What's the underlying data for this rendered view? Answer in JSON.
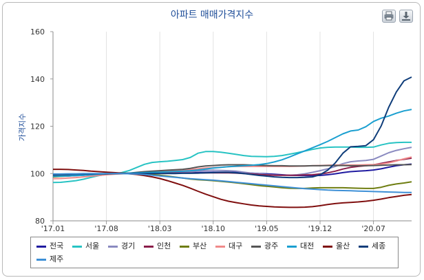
{
  "toolbar": {
    "print_icon": "printer-icon",
    "download_icon": "download-icon"
  },
  "chart_data": {
    "type": "line",
    "title": "아파트 매매가격지수",
    "ylabel": "가격지수",
    "xlabel": "",
    "ylim": [
      80,
      160
    ],
    "yticks": [
      80,
      100,
      120,
      140,
      160
    ],
    "xticks": [
      "'17.01",
      "'17.08",
      "'18.03",
      "'18.10",
      "'19.05",
      "'19.12",
      "'20.07"
    ],
    "grid": "vertical",
    "legend": "bottom",
    "x": [
      "'17.01",
      "'17.02",
      "'17.03",
      "'17.04",
      "'17.05",
      "'17.06",
      "'17.07",
      "'17.08",
      "'17.09",
      "'17.10",
      "'17.11",
      "'17.12",
      "'18.01",
      "'18.02",
      "'18.03",
      "'18.04",
      "'18.05",
      "'18.06",
      "'18.07",
      "'18.08",
      "'18.09",
      "'18.10",
      "'18.11",
      "'18.12",
      "'19.01",
      "'19.02",
      "'19.03",
      "'19.04",
      "'19.05",
      "'19.06",
      "'19.07",
      "'19.08",
      "'19.09",
      "'19.10",
      "'19.11",
      "'19.12",
      "'20.01",
      "'20.02",
      "'20.03",
      "'20.04",
      "'20.05",
      "'20.06",
      "'20.07",
      "'20.08",
      "'20.09",
      "'20.10",
      "'20.11",
      "'20.12"
    ],
    "series": [
      {
        "name": "전국",
        "color": "#1f1aa0",
        "values": [
          98.8,
          98.9,
          99.0,
          99.1,
          99.3,
          99.5,
          99.7,
          99.9,
          100.0,
          100.0,
          100.1,
          100.2,
          100.2,
          100.2,
          100.3,
          100.3,
          100.3,
          100.3,
          100.3,
          100.4,
          100.5,
          100.6,
          100.6,
          100.6,
          100.5,
          100.3,
          100.2,
          100.0,
          99.9,
          99.7,
          99.5,
          99.3,
          99.2,
          99.1,
          99.1,
          99.2,
          99.5,
          99.9,
          100.4,
          100.8,
          101.0,
          101.2,
          101.5,
          102.0,
          102.7,
          103.3,
          103.7,
          104.0
        ]
      },
      {
        "name": "서울",
        "color": "#27c3c3",
        "values": [
          96.2,
          96.3,
          96.6,
          97.0,
          97.6,
          98.4,
          99.1,
          99.6,
          99.9,
          100.4,
          101.3,
          102.6,
          103.9,
          104.7,
          105.0,
          105.2,
          105.5,
          105.9,
          106.8,
          108.6,
          109.3,
          109.3,
          109.0,
          108.6,
          108.1,
          107.6,
          107.3,
          107.2,
          107.1,
          107.3,
          107.6,
          108.2,
          108.8,
          109.5,
          110.2,
          110.8,
          111.1,
          111.2,
          111.2,
          111.2,
          111.1,
          111.1,
          111.2,
          112.1,
          112.8,
          113.1,
          113.2,
          113.2
        ]
      },
      {
        "name": "경기",
        "color": "#8a8ac0",
        "values": [
          99.0,
          99.1,
          99.2,
          99.3,
          99.4,
          99.5,
          99.7,
          99.8,
          99.9,
          100.0,
          100.1,
          100.2,
          100.3,
          100.4,
          100.5,
          100.6,
          100.7,
          100.8,
          100.8,
          101.0,
          101.3,
          101.4,
          101.3,
          101.2,
          101.0,
          100.6,
          100.2,
          99.9,
          99.6,
          99.4,
          99.3,
          99.3,
          99.5,
          99.9,
          100.5,
          101.2,
          102.0,
          103.0,
          104.2,
          105.0,
          105.3,
          105.5,
          106.0,
          107.4,
          108.8,
          109.8,
          110.5,
          111.1
        ]
      },
      {
        "name": "인천",
        "color": "#8a1d4a",
        "values": [
          99.2,
          99.3,
          99.3,
          99.4,
          99.5,
          99.6,
          99.7,
          99.8,
          99.9,
          100.0,
          100.1,
          100.1,
          100.1,
          100.1,
          100.2,
          100.2,
          100.2,
          100.2,
          100.2,
          100.2,
          100.3,
          100.3,
          100.3,
          100.3,
          100.2,
          100.0,
          99.8,
          99.6,
          99.4,
          99.3,
          99.3,
          99.3,
          99.3,
          99.4,
          99.5,
          99.8,
          100.3,
          101.0,
          101.9,
          102.6,
          103.0,
          103.3,
          103.7,
          104.3,
          104.9,
          105.5,
          106.0,
          106.5
        ]
      },
      {
        "name": "부산",
        "color": "#6e7d10",
        "values": [
          98.6,
          98.8,
          99.0,
          99.2,
          99.4,
          99.6,
          99.8,
          100.0,
          100.1,
          100.2,
          100.2,
          100.1,
          99.9,
          99.6,
          99.3,
          98.9,
          98.5,
          98.1,
          97.7,
          97.4,
          97.2,
          97.0,
          96.7,
          96.4,
          96.1,
          95.7,
          95.3,
          94.9,
          94.6,
          94.3,
          94.0,
          93.8,
          93.7,
          93.7,
          93.9,
          94.0,
          94.0,
          94.0,
          94.0,
          93.9,
          93.8,
          93.7,
          93.7,
          94.2,
          95.0,
          95.6,
          96.0,
          96.5
        ]
      },
      {
        "name": "대구",
        "color": "#f08a8a",
        "values": [
          97.8,
          97.9,
          98.1,
          98.3,
          98.6,
          98.9,
          99.2,
          99.5,
          99.7,
          99.9,
          100.1,
          100.3,
          100.5,
          100.7,
          100.9,
          101.1,
          101.3,
          101.5,
          101.7,
          102.0,
          102.3,
          102.5,
          102.7,
          102.9,
          103.0,
          103.0,
          103.0,
          103.0,
          103.0,
          103.0,
          103.0,
          103.0,
          103.1,
          103.2,
          103.3,
          103.4,
          103.5,
          103.6,
          103.6,
          103.6,
          103.6,
          103.7,
          103.8,
          104.0,
          104.5,
          105.3,
          106.2,
          107.0
        ]
      },
      {
        "name": "광주",
        "color": "#555555",
        "values": [
          99.0,
          99.1,
          99.2,
          99.4,
          99.5,
          99.6,
          99.7,
          99.8,
          99.9,
          100.0,
          100.2,
          100.5,
          100.8,
          101.0,
          101.2,
          101.4,
          101.6,
          101.8,
          102.2,
          102.8,
          103.2,
          103.4,
          103.6,
          103.7,
          103.7,
          103.7,
          103.6,
          103.5,
          103.4,
          103.3,
          103.3,
          103.2,
          103.2,
          103.2,
          103.3,
          103.3,
          103.4,
          103.4,
          103.4,
          103.3,
          103.3,
          103.3,
          103.4,
          103.5,
          103.6,
          103.7,
          103.7,
          103.8
        ]
      },
      {
        "name": "대전",
        "color": "#1a9fd0",
        "values": [
          98.8,
          98.9,
          99.0,
          99.1,
          99.3,
          99.5,
          99.7,
          99.9,
          100.0,
          100.1,
          100.2,
          100.3,
          100.4,
          100.5,
          100.6,
          100.7,
          100.9,
          101.0,
          101.2,
          101.5,
          101.9,
          102.3,
          102.6,
          102.9,
          103.1,
          103.3,
          103.5,
          103.8,
          104.2,
          104.9,
          105.8,
          107.0,
          108.3,
          109.6,
          110.9,
          112.2,
          113.6,
          115.2,
          116.8,
          118.0,
          118.4,
          119.8,
          122.0,
          123.4,
          124.3,
          125.5,
          126.5,
          127.1
        ]
      },
      {
        "name": "울산",
        "color": "#7f0e0e",
        "values": [
          101.8,
          101.8,
          101.7,
          101.5,
          101.3,
          101.0,
          100.8,
          100.6,
          100.4,
          100.2,
          99.9,
          99.6,
          99.1,
          98.6,
          97.9,
          97.0,
          96.0,
          95.0,
          93.8,
          92.5,
          91.3,
          90.2,
          89.1,
          88.3,
          87.7,
          87.2,
          86.7,
          86.3,
          86.1,
          85.9,
          85.8,
          85.7,
          85.7,
          85.8,
          86.0,
          86.4,
          86.9,
          87.3,
          87.6,
          87.8,
          88.0,
          88.3,
          88.7,
          89.2,
          89.8,
          90.3,
          90.8,
          91.1
        ]
      },
      {
        "name": "세종",
        "color": "#0f3d7a",
        "values": [
          99.5,
          99.6,
          99.6,
          99.7,
          99.8,
          99.8,
          99.9,
          99.9,
          100.0,
          100.0,
          100.0,
          100.0,
          100.0,
          100.0,
          100.0,
          100.0,
          100.0,
          100.1,
          100.1,
          100.2,
          100.3,
          100.4,
          100.5,
          100.5,
          100.3,
          100.0,
          99.6,
          99.2,
          98.9,
          98.6,
          98.4,
          98.3,
          98.3,
          98.4,
          98.6,
          99.5,
          101.4,
          104.5,
          108.6,
          111.3,
          111.5,
          111.8,
          114.3,
          120.1,
          128.0,
          134.5,
          139.2,
          140.8
        ]
      },
      {
        "name": "제주",
        "color": "#3d8fd6",
        "values": [
          99.8,
          99.8,
          99.9,
          99.9,
          100.0,
          100.0,
          100.0,
          100.0,
          100.0,
          100.0,
          99.9,
          99.8,
          99.6,
          99.3,
          99.0,
          98.7,
          98.4,
          98.1,
          97.8,
          97.6,
          97.4,
          97.2,
          96.9,
          96.6,
          96.3,
          96.0,
          95.7,
          95.4,
          95.1,
          94.8,
          94.5,
          94.2,
          93.9,
          93.6,
          93.4,
          93.2,
          93.0,
          92.9,
          92.8,
          92.7,
          92.6,
          92.5,
          92.4,
          92.3,
          92.2,
          92.1,
          92.0,
          92.0
        ]
      }
    ]
  }
}
